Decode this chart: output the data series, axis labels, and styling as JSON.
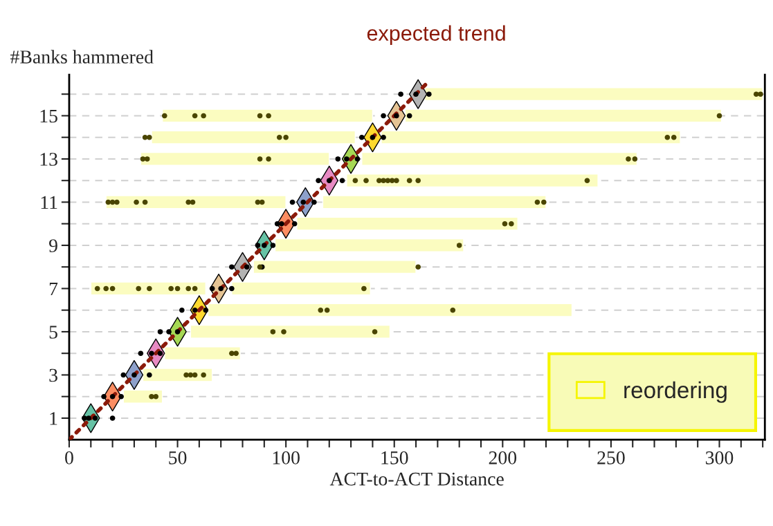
{
  "chart_data": {
    "type": "scatter",
    "orientation": "horizontal",
    "xlabel": "ACT-to-ACT Distance",
    "ylabel": "#Banks hammered",
    "xlim": [
      0,
      321
    ],
    "ylim": [
      0,
      16.9
    ],
    "xticks": [
      0,
      {
        "value": 10,
        "label": null
      },
      {
        "value": 20,
        "label": null
      },
      {
        "value": 30,
        "label": null
      },
      {
        "value": 40,
        "label": null
      },
      50,
      {
        "value": 60,
        "label": null
      },
      {
        "value": 70,
        "label": null
      },
      {
        "value": 80,
        "label": null
      },
      {
        "value": 90,
        "label": null
      },
      100,
      {
        "value": 110,
        "label": null
      },
      {
        "value": 120,
        "label": null
      },
      {
        "value": 130,
        "label": null
      },
      {
        "value": 140,
        "label": null
      },
      150,
      {
        "value": 160,
        "label": null
      },
      {
        "value": 170,
        "label": null
      },
      {
        "value": 180,
        "label": null
      },
      {
        "value": 190,
        "label": null
      },
      200,
      {
        "value": 210,
        "label": null
      },
      {
        "value": 220,
        "label": null
      },
      {
        "value": 230,
        "label": null
      },
      {
        "value": 240,
        "label": null
      },
      250,
      {
        "value": 260,
        "label": null
      },
      {
        "value": 270,
        "label": null
      },
      {
        "value": 280,
        "label": null
      },
      {
        "value": 290,
        "label": null
      },
      300,
      {
        "value": 310,
        "label": null
      },
      {
        "value": 320,
        "label": null
      }
    ],
    "yticks": [
      1,
      {
        "value": 2,
        "label": null
      },
      3,
      {
        "value": 4,
        "label": null
      },
      5,
      {
        "value": 6,
        "label": null
      },
      7,
      {
        "value": 8,
        "label": null
      },
      9,
      {
        "value": 10,
        "label": null
      },
      11,
      {
        "value": 12,
        "label": null
      },
      13,
      {
        "value": 14,
        "label": null
      },
      15,
      {
        "value": 16,
        "label": null
      }
    ],
    "grid": "y",
    "legend": "bottom right",
    "series": [
      {
        "name": "reordering",
        "type": "bar",
        "color": "#fbfcc0",
        "x": [
          16,
          15,
          14,
          13,
          12,
          11,
          10,
          9,
          8,
          7,
          6,
          5,
          4,
          3,
          2
        ],
        "base": [
          164,
          155,
          144,
          135,
          128,
          117,
          105,
          95,
          85,
          75,
          64,
          56,
          44,
          34,
          25
        ],
        "values": [
          156,
          146,
          138,
          127,
          116,
          103,
          102,
          87,
          75,
          64,
          168,
          92,
          35,
          32,
          18
        ]
      },
      {
        "type": "bar",
        "color": "#fbfcc0",
        "x": [
          15,
          14,
          13,
          11,
          7
        ],
        "base": [
          43,
          38,
          33,
          17,
          10
        ],
        "values": [
          97,
          94,
          87,
          83,
          53
        ]
      },
      {
        "color": "#000000",
        "marker": "circle",
        "x": [
          1,
          1,
          1,
          1,
          2,
          2,
          2,
          3,
          3,
          3,
          4,
          4,
          4,
          5,
          5,
          5,
          6,
          6,
          6,
          7,
          7,
          7,
          8,
          8,
          8,
          9,
          9,
          9,
          10,
          10,
          10,
          11,
          11,
          11,
          12,
          12,
          12,
          13,
          13,
          13,
          14,
          14,
          14,
          15,
          15,
          15,
          16,
          16,
          16
        ],
        "values": [
          7,
          9,
          12,
          20,
          16,
          20,
          24,
          25,
          30,
          37,
          33,
          38,
          42,
          42,
          46,
          50,
          52,
          58,
          63,
          66,
          70,
          75,
          75,
          82,
          89,
          87,
          90,
          94,
          96,
          98,
          104,
          103,
          108,
          113,
          115,
          120,
          126,
          124,
          128,
          133,
          135,
          140,
          145,
          145,
          151,
          157,
          153,
          160,
          166
        ]
      },
      {
        "color": "#4a4500",
        "marker": "circle",
        "x": [
          2,
          2,
          3,
          3,
          3,
          3,
          4,
          4,
          5,
          5,
          5,
          6,
          6,
          6,
          7,
          7,
          7,
          7,
          7,
          7,
          7,
          7,
          7,
          7,
          8,
          8,
          9,
          10,
          10,
          11,
          11,
          11,
          11,
          11,
          11,
          11,
          11,
          11,
          11,
          11,
          12,
          12,
          12,
          12,
          12,
          12,
          12,
          12,
          12,
          12,
          13,
          13,
          13,
          13,
          13,
          13,
          14,
          14,
          14,
          14,
          14,
          14,
          15,
          15,
          15,
          15,
          15,
          15,
          16,
          16
        ],
        "values": [
          38,
          40,
          54,
          56,
          58,
          62,
          75,
          77,
          94,
          99,
          141,
          116,
          119,
          177,
          13,
          17,
          20,
          32,
          37,
          47,
          50,
          55,
          58,
          136,
          88,
          161,
          180,
          201,
          204,
          18,
          20,
          22,
          31,
          35,
          55,
          57,
          87,
          89,
          216,
          219,
          132,
          137,
          143,
          145,
          147,
          149,
          151,
          157,
          161,
          239,
          34,
          36,
          88,
          92,
          258,
          261,
          35,
          37,
          97,
          100,
          276,
          279,
          44,
          58,
          62,
          88,
          92,
          300,
          317,
          319
        ]
      },
      {
        "marker": "diamond",
        "x": [
          1,
          2,
          3,
          4,
          5,
          6,
          7,
          8,
          9,
          10,
          11,
          12,
          13,
          14,
          15,
          16
        ],
        "values": [
          10,
          20,
          30,
          40,
          50,
          60,
          69,
          80,
          90,
          100,
          109,
          120,
          130,
          140,
          151,
          161
        ],
        "colors": [
          "#66c2a5",
          "#fc8d62",
          "#8da0cb",
          "#e78ac3",
          "#a6d854",
          "#ffd92f",
          "#e5c494",
          "#b3b3b3",
          "#66c2a5",
          "#fc8d62",
          "#8da0cb",
          "#e78ac3",
          "#a6d854",
          "#ffd92f",
          "#e5c494",
          "#b3b3b3"
        ]
      },
      {
        "name": "expected trend",
        "type": "line",
        "color": "#8b1a0a",
        "line_style": "dotted",
        "x": [
          0,
          16.5
        ],
        "values": [
          0,
          165
        ]
      }
    ]
  }
}
